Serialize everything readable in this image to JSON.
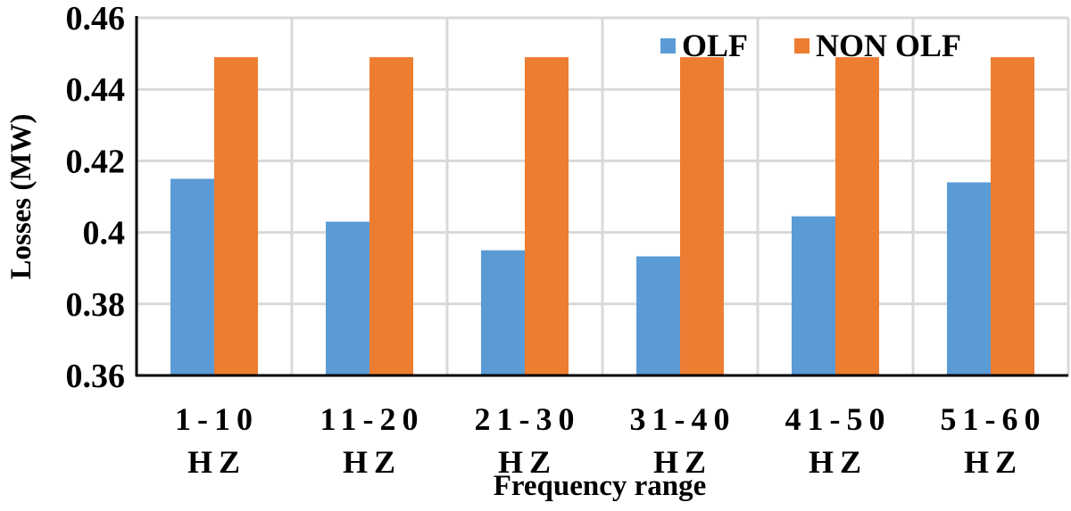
{
  "chart_data": {
    "type": "bar",
    "title": "",
    "xlabel": "Frequency range",
    "ylabel": "Losses (MW)",
    "ylim": [
      0.36,
      0.46
    ],
    "yticks": [
      0.36,
      0.38,
      0.4,
      0.42,
      0.44,
      0.46
    ],
    "ytick_labels": [
      "0.36",
      "0.38",
      "0.4",
      "0.42",
      "0.44",
      "0.46"
    ],
    "grid": true,
    "legend_position": "top-right",
    "categories": [
      {
        "line1": "1-10",
        "line2": "HZ"
      },
      {
        "line1": "11-20",
        "line2": "HZ"
      },
      {
        "line1": "21-30",
        "line2": "HZ"
      },
      {
        "line1": "31-40",
        "line2": "HZ"
      },
      {
        "line1": "41-50",
        "line2": "HZ"
      },
      {
        "line1": "51-60",
        "line2": "HZ"
      }
    ],
    "series": [
      {
        "name": "OLF",
        "color": "#5b9bd5",
        "values": [
          0.415,
          0.403,
          0.395,
          0.3933,
          0.4045,
          0.414
        ]
      },
      {
        "name": "NON OLF",
        "color": "#ed7d31",
        "values": [
          0.449,
          0.449,
          0.449,
          0.449,
          0.449,
          0.449
        ]
      }
    ]
  }
}
